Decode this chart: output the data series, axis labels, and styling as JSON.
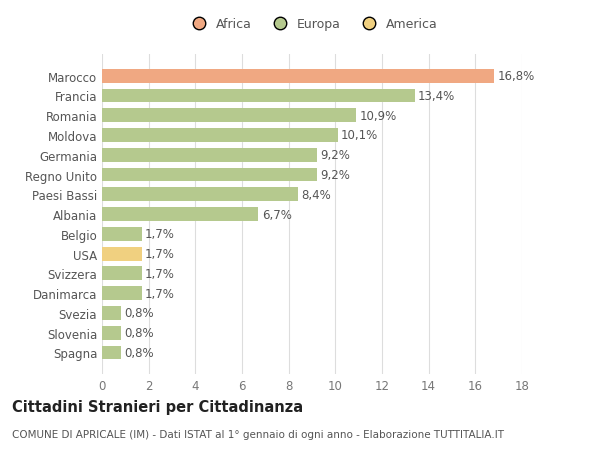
{
  "countries": [
    "Marocco",
    "Francia",
    "Romania",
    "Moldova",
    "Germania",
    "Regno Unito",
    "Paesi Bassi",
    "Albania",
    "Belgio",
    "USA",
    "Svizzera",
    "Danimarca",
    "Svezia",
    "Slovenia",
    "Spagna"
  ],
  "values": [
    16.8,
    13.4,
    10.9,
    10.1,
    9.2,
    9.2,
    8.4,
    6.7,
    1.7,
    1.7,
    1.7,
    1.7,
    0.8,
    0.8,
    0.8
  ],
  "labels": [
    "16,8%",
    "13,4%",
    "10,9%",
    "10,1%",
    "9,2%",
    "9,2%",
    "8,4%",
    "6,7%",
    "1,7%",
    "1,7%",
    "1,7%",
    "1,7%",
    "0,8%",
    "0,8%",
    "0,8%"
  ],
  "colors": [
    "#f0a882",
    "#b5c98e",
    "#b5c98e",
    "#b5c98e",
    "#b5c98e",
    "#b5c98e",
    "#b5c98e",
    "#b5c98e",
    "#b5c98e",
    "#f0d080",
    "#b5c98e",
    "#b5c98e",
    "#b5c98e",
    "#b5c98e",
    "#b5c98e"
  ],
  "legend": [
    {
      "label": "Africa",
      "color": "#f0a882"
    },
    {
      "label": "Europa",
      "color": "#b5c98e"
    },
    {
      "label": "America",
      "color": "#f0d080"
    }
  ],
  "xlim": [
    0,
    18
  ],
  "xticks": [
    0,
    2,
    4,
    6,
    8,
    10,
    12,
    14,
    16,
    18
  ],
  "title": "Cittadini Stranieri per Cittadinanza",
  "subtitle": "COMUNE DI APRICALE (IM) - Dati ISTAT al 1° gennaio di ogni anno - Elaborazione TUTTITALIA.IT",
  "background_color": "#ffffff",
  "grid_color": "#dddddd",
  "bar_height": 0.7,
  "label_fontsize": 8.5,
  "tick_fontsize": 8.5,
  "title_fontsize": 10.5,
  "subtitle_fontsize": 7.5
}
